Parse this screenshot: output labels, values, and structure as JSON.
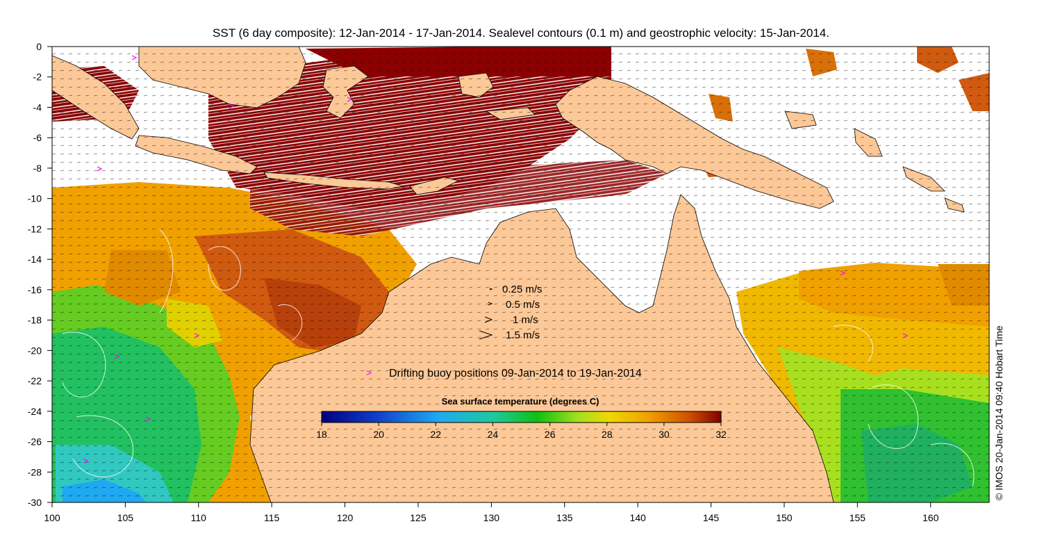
{
  "title": "SST (6 day composite): 12-Jan-2014 - 17-Jan-2014. Sealevel contours (0.1 m) and geostrophic velocity: 15-Jan-2014.",
  "credit": "© IMOS 20-Jan-2014 09:40 Hobart Time",
  "axes": {
    "x_ticks": [
      "100",
      "105",
      "110",
      "115",
      "120",
      "125",
      "130",
      "135",
      "140",
      "145",
      "150",
      "155",
      "160"
    ],
    "y_ticks": [
      "0",
      "-2",
      "-4",
      "-6",
      "-8",
      "-10",
      "-12",
      "-14",
      "-16",
      "-18",
      "-20",
      "-22",
      "-24",
      "-26",
      "-28",
      "-30"
    ],
    "lon_range": [
      100,
      164
    ],
    "lat_range": [
      -30,
      0
    ]
  },
  "velocity_legend": [
    {
      "label": "0.25 m/s",
      "speed": 0.25
    },
    {
      "label": "0.5 m/s",
      "speed": 0.5
    },
    {
      "label": "1 m/s",
      "speed": 1
    },
    {
      "label": "1.5 m/s",
      "speed": 1.5
    }
  ],
  "buoy_legend": {
    "symbol": ">",
    "label": "Drifting buoy positions 09-Jan-2014 to 19-Jan-2014",
    "color": "#ff00ff"
  },
  "colorbar": {
    "title": "Sea surface temperature (degrees C)",
    "ticks": [
      "18",
      "20",
      "22",
      "24",
      "26",
      "28",
      "30",
      "32"
    ],
    "range": [
      18,
      32
    ]
  },
  "colors": {
    "land": "#fdc897",
    "no_data": "#ffffff",
    "coast": "#000000"
  }
}
